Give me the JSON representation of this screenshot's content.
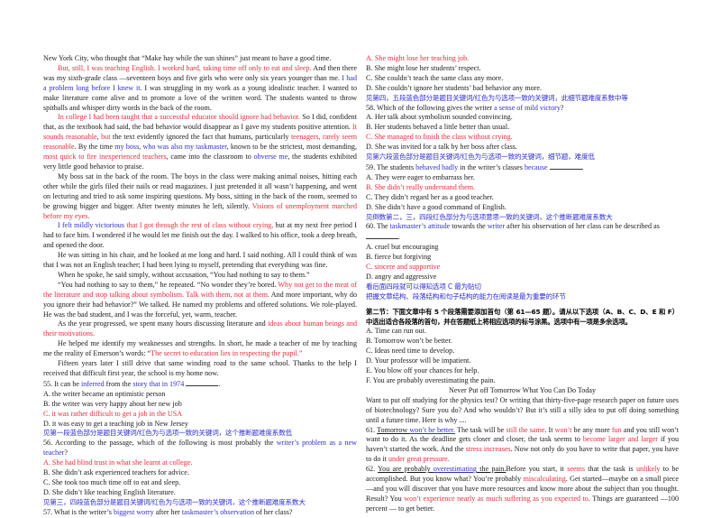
{
  "left": {
    "p0": "New York City, who thought that “Make hay while the sun shines” just meant to have a good time.",
    "p1": {
      "r1": "But, still, I was teaching English. I worked hard, taking time off only to eat and sleep.",
      "t1": " And then there was my sixth-grade class —seventeen boys and five girls who were only six years younger than me. ",
      "b1": "I had a problem long before I knew it.",
      "t2": " I was struggling in my work as a young idealistic teacher. I wanted to make literature come alive and to promote a love of the written word. The students wanted to throw spitballs and whisper dirty words in the back of the room."
    },
    "p2": {
      "r1": "In college I had been taught that a successful educator should ignore bad behavior.",
      "t1": " So I did, confident that, as the textbook had said, the bad behavior would disappear as I gave my students positive attention. ",
      "r2": "It sounds reasonable",
      "t2": ", ",
      "r3": "but",
      "t3": " the text evidently ignored the fact that humans, particularly ",
      "r4": "teenagers, rarely seem reasonable",
      "t4": ". By the time ",
      "b1": "my boss, who was also my taskmaster",
      "t5": ", known to be the strictest, most demanding, ",
      "r5": "most quick to fire inexperienced teachers",
      "t6": ", came into the classroom to ",
      "b2": "obverse me",
      "t7": ", the students exhibited very little good behavior to praise."
    },
    "p3": {
      "t1": "My boss sat in the back of the room. The boys in the class were making animal noises, hitting each other while the girls filed their nails or read magazines. I just pretended it all wasn’t happening, and went on lecturing and tried to ask some inspiring questions. My boss, sitting in the back of the room, seemed to be growing bigger and bigger. After twenty minutes he left, silently. ",
      "r1": "Visions of unemployment marched before my eyes."
    },
    "p4": {
      "b1": "I felt mildly victorious",
      "t1": " ",
      "r1": "that I got through the rest of class without crying,",
      "t2": " but at my next free period I had to face him. I wondered if he would let me finish out the day. I walked to his office, took a deep breath, and opened the door."
    },
    "p5": "He was sitting in his chair, and he looked at me long and hard. I said nothing. All I could think of was that I was not an English teacher; I had been lying to myself, pretending that everything was fine.",
    "p6": "When he spoke, he said simply, without accusation, “You had nothing to say to them.”",
    "p7": {
      "t1": "“You had nothing to say to them,” he repeated. “No wonder they’re bored. ",
      "r1": "Why not get to the meat of the literature and stop talking about symbolism. Talk with them, not at them.",
      "t2": " And more important, why do you ignore their bad behavior?” We talked. He named my problems and offered solutions. We role-played. He was the bad student, and I was the forceful, yet, warm, teacher."
    },
    "p8": {
      "t1": "As the year progressed, we spent many hours discussing literature and ",
      "r1": "ideas about human beings and their motivations."
    },
    "p9": {
      "t1": "He helped me identify my weaknesses and strengths. In short, he made a teacher of me by teaching me the reality of Emerson’s words: “",
      "r1": "The secret to education lies in respecting the pupil.",
      "t2": "”"
    },
    "p10": "Fifteen years later I still drive that same winding road to the same school. Thanks to the help I received that difficult first year, the school is my home now.",
    "q55": {
      "t1": "55. It can be ",
      "b1": "inferred",
      "t2": " from the ",
      "b2": "story that in 1974",
      "t3": " ",
      "t4": ".",
      "options": [
        "A. the writer became an optimistic person",
        "B. the writer was very happy about her new job",
        "C. it was rather difficult to get a job in the USA",
        "D. it was easy to get a teaching job in New Jersey"
      ],
      "answer_index": 2,
      "note": "见第一段蓝色部分是题目关键词/红色为与选项一致的关键词，这个推断题难度系数低"
    },
    "q56": {
      "t1": "56. According to the passage, which of the following is most probably the ",
      "b1": "writer’s problem as a new teacher",
      "t2": "?",
      "options": [
        "A. She had blind trust in what she learnt at college.",
        "B. She didn’t ask experienced teachers for advice.",
        "C. She took too much time off to eat and sleep.",
        "D. She didn’t like teaching English literature."
      ],
      "answer_index": 0,
      "note": "见第三，四段蓝色部分是题目关键词/红色为与选项一致的关键词，这个推断题难度系数大"
    },
    "q57": {
      "t1": "57. What is the writer’s ",
      "b1": "biggest worry",
      "t2": " after her ",
      "b2": "taskmaster’s observation",
      "t3": " of her class?"
    }
  },
  "right": {
    "q57_options": [
      "A. She might lose her teaching job.",
      "B. She might lose her students’ respect.",
      "C. She couldn’t teach the same class any more.",
      "D. She couldn’t ignore her students’ bad behavior any more."
    ],
    "q57_answer_index": 0,
    "q57_note": "见第四，五段蓝色部分是题目关键词/红色为与选项一致的关键词，此细节题难度系数中等",
    "q58": {
      "t1": "58. Which of the following gives the writer ",
      "b1": "a sense of mild victory",
      "t2": "?",
      "options": [
        "A. Her talk about symbolism sounded convincing.",
        "B. Her students behaved a little better than usual.",
        "C. She managed to finish the class without crying.",
        "D. She was invited for a talk by her boss after class."
      ],
      "answer_index": 2,
      "note": "见第六段蓝色部分是题目关键词/红色为与选项一致的关键词，细节题，难度低"
    },
    "q59": {
      "t1": "59. The students ",
      "b1": "behaved badly",
      "t2": " in the writer’s classes ",
      "b2": "because",
      "t3": " ",
      "t4": ".",
      "options": [
        "A. They were eager to embarrass her.",
        "B. She didn’t really understand them.",
        "C. They didn’t regard her as a good teacher.",
        "D. She didn’t have a good command of English."
      ],
      "answer_index": 1,
      "note": "见倒数第二，三，四段红色部分为与选项意思一致的关键词，这个推断题难度系数大"
    },
    "q60": {
      "t1": "60. The ",
      "b1": "taskmaster’s attitude",
      "t2": " towards the ",
      "b2": "writer",
      "t3": " after his observation of her class can be described as ",
      "t4": ".",
      "options": [
        "A. cruel but encouraging",
        "B. fierce but forgiving",
        "C. sincere and supportive",
        "D. angry and aggressive"
      ],
      "answer_index": 2,
      "note1": "看后面四段就可以得知选项 C 最为贴切",
      "note2": "把握文章结构、段落结构和句子结构的能力在阅读是最为重要的环节"
    },
    "section2": {
      "instruction": "第二节：下面文章中有 5 个段落需要添加首句（第 61—65 题）。请从以下选项（A、B、C、D、E 和 F）中选出适合各段落的首句，并在答题纸上将相应选项的标号涂黑。选项中有一项是多余选项。",
      "options": [
        "A. Time can run out.",
        "B. Tomorrow won’t be better.",
        "C. Ideas need time to develop.",
        "D. Your professor will be impatient.",
        "E. You blow off your chances for help.",
        "F. You are probably overestimating the pain."
      ],
      "title": "Never Put off Tomorrow What You Can Do Today",
      "intro": "Want to put off studying for the physics test? Or writing that thirty-five-page research paper on future uses of biotechnology? Sure you do? And who wouldn’t? But it’s still a silly idea to put off doing something until a future time. Here is why ....",
      "p61": {
        "num": "61. ",
        "u1": "Tomorrow ",
        "ub1": "won’t be better.",
        "t1": " The task will be ",
        "r1": "still the same",
        "t2": ". It ",
        "r2": "won’t",
        "t3": " be any more ",
        "r3": "fun",
        "t4": " and you still won’t want to do it. As the deadline gets closer and closer, the task seems to ",
        "r4": "become larger and larger",
        "t5": " if you haven’t started the work. And the ",
        "r5": "stress increases",
        "t6": ". Now not only do you have to write that paper, you have to do it ",
        "r6": "under great pressure."
      },
      "p62": {
        "num": "62. ",
        "u1": "You are probably ",
        "ub1": "overestimating",
        "u2": " the pain.",
        "t1": "Before you start, it ",
        "r1": "seems",
        "t2": " that the task is ",
        "r2": "unlikely",
        "t3": " to be accomplished. But you know what? You’re probably ",
        "r3": "miscalculating",
        "t4": ". Get started—maybe on a small piece —and you will discover that you have more resources and know more about the subject than you thought. Result? You ",
        "r4": "won’t experience nearly as much suffering as you expected to",
        "t5": ". Things are guaranteed —100 percent — to get better."
      }
    }
  },
  "colors": {
    "highlight_red": "#ee2a3a",
    "highlight_blue": "#2e2ed8",
    "body_text": "#1a1a1a"
  }
}
